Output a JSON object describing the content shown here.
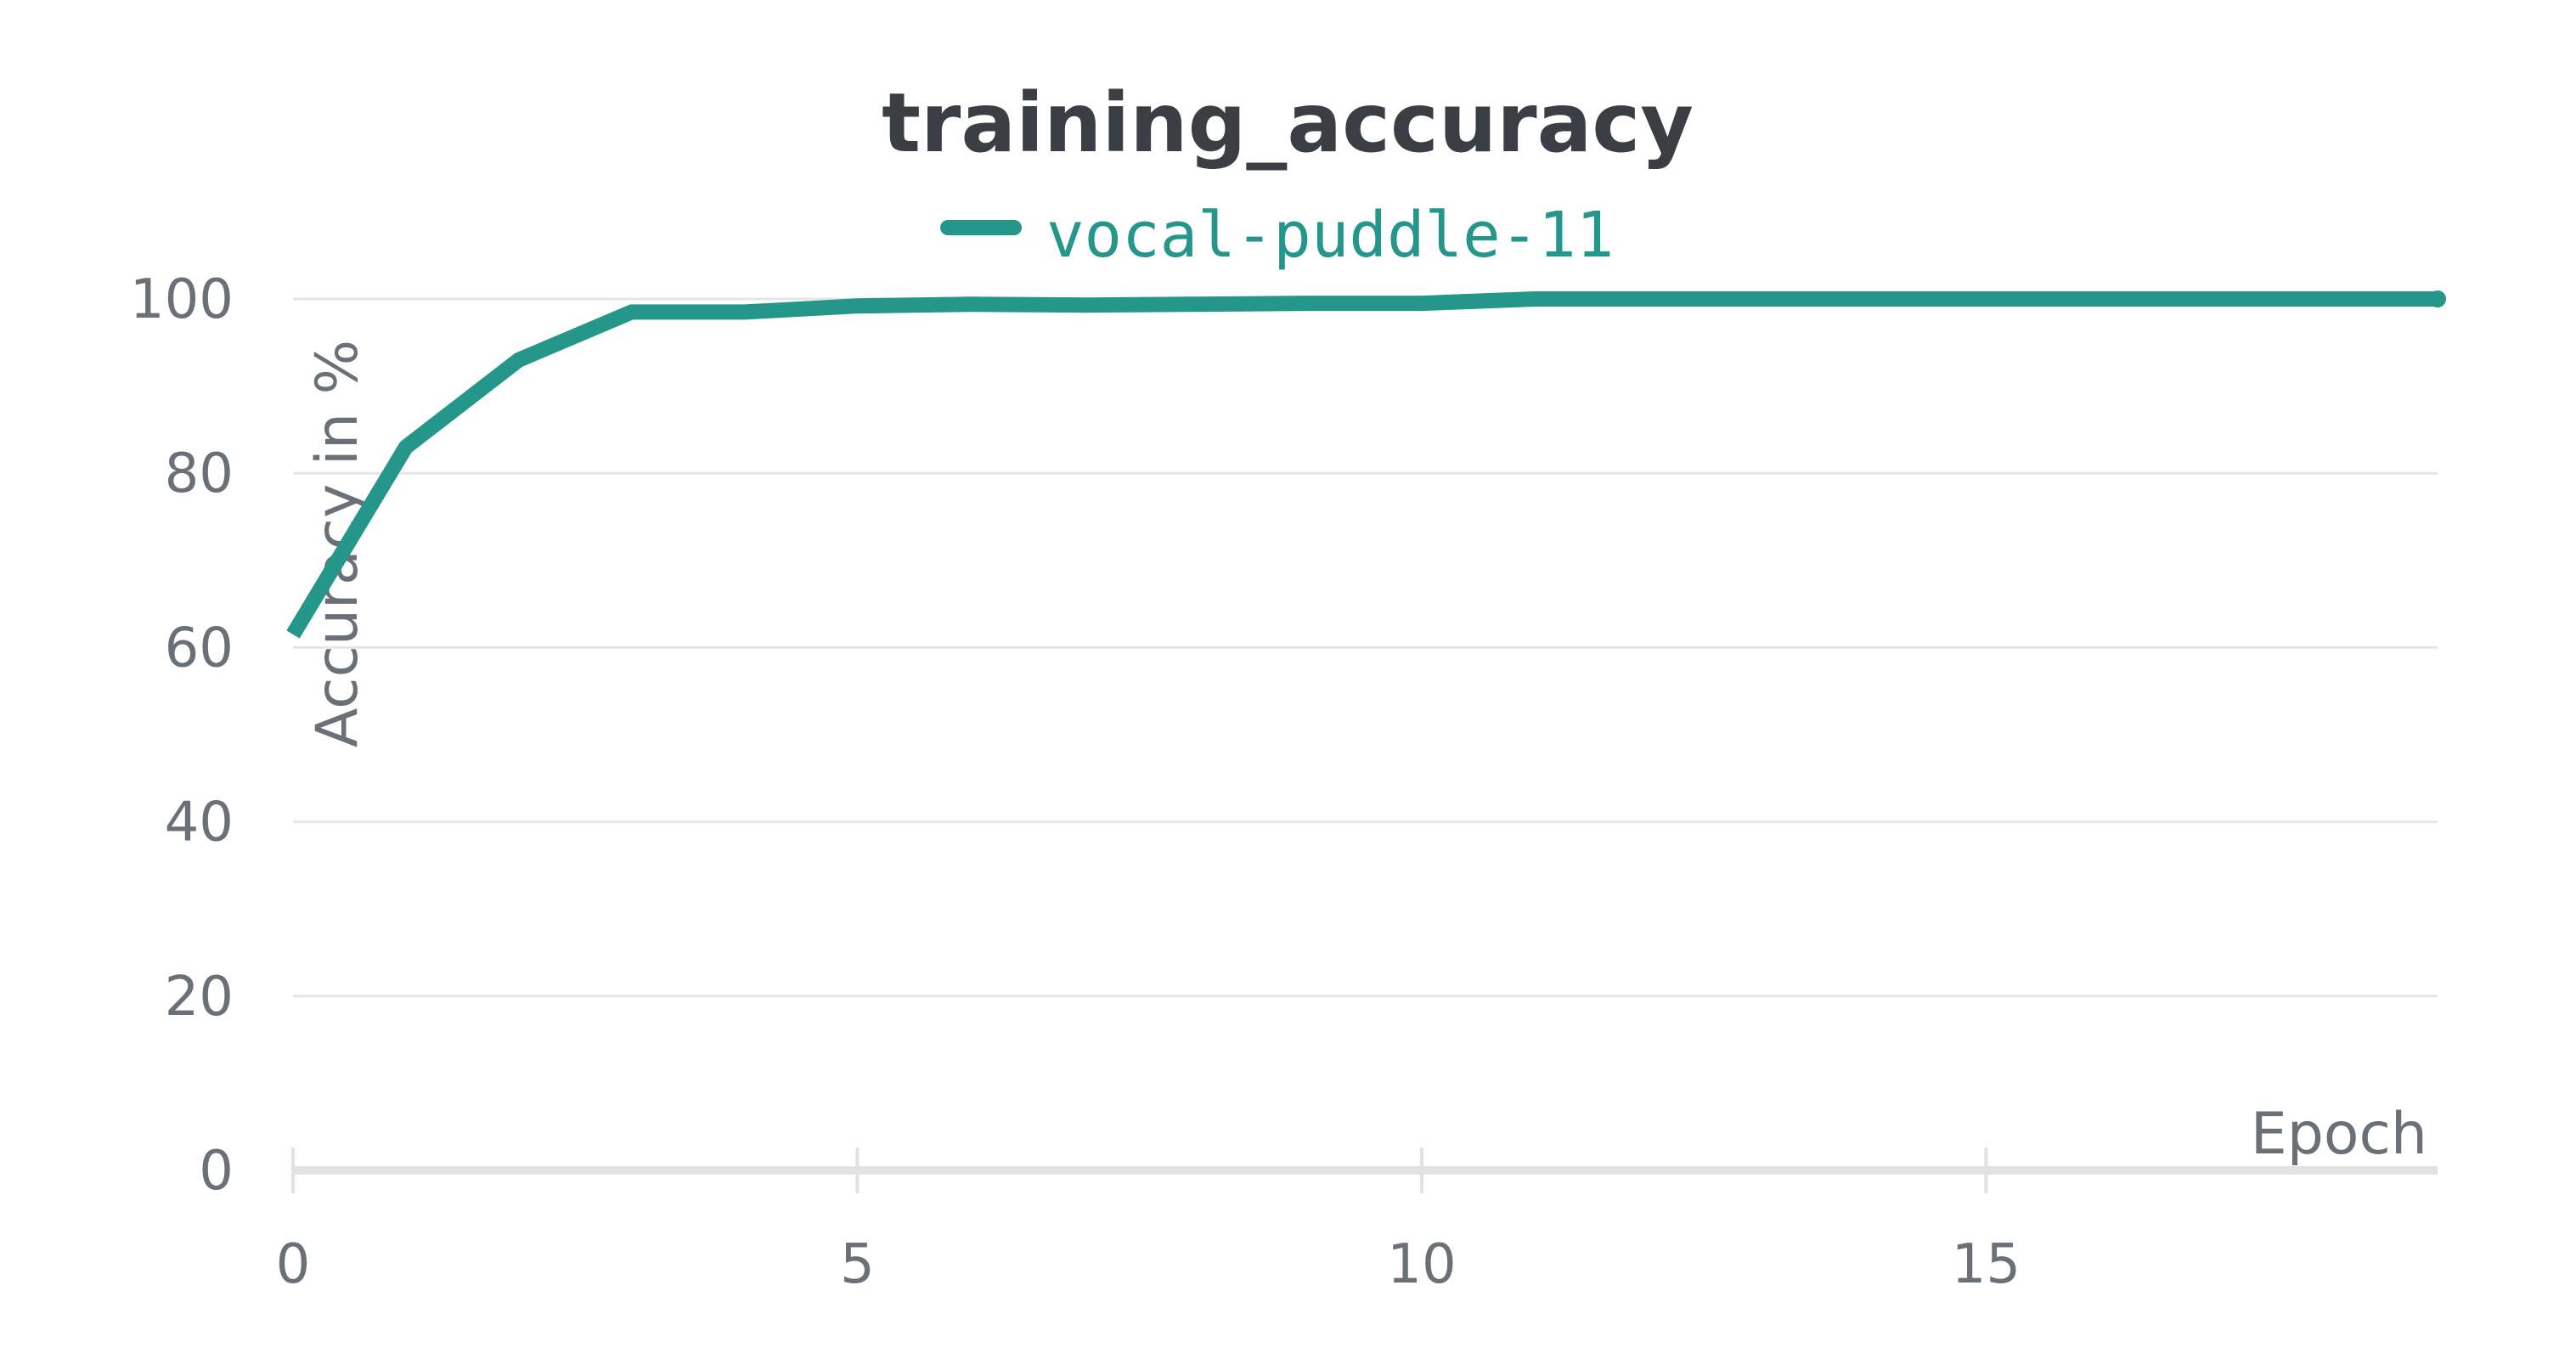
{
  "chart_data": {
    "type": "line",
    "title": "training_accuracy",
    "xlabel": "Epoch",
    "ylabel": "Accuracy in %",
    "xlim": [
      0,
      19
    ],
    "ylim": [
      0,
      100
    ],
    "x_ticks": [
      0,
      5,
      10,
      15
    ],
    "y_ticks": [
      0,
      20,
      40,
      60,
      80,
      100
    ],
    "grid": true,
    "legend_position": "top-center",
    "series": [
      {
        "name": "vocal-puddle-11",
        "color": "#25968a",
        "x": [
          0,
          1,
          2,
          3,
          4,
          5,
          6,
          7,
          8,
          9,
          10,
          11,
          12,
          13,
          14,
          15,
          16,
          17,
          18,
          19
        ],
        "y": [
          61.5,
          83,
          93,
          98.5,
          98.5,
          99.2,
          99.4,
          99.3,
          99.4,
          99.5,
          99.5,
          100,
          100,
          100,
          100,
          100,
          100,
          100,
          100,
          100
        ]
      }
    ]
  }
}
